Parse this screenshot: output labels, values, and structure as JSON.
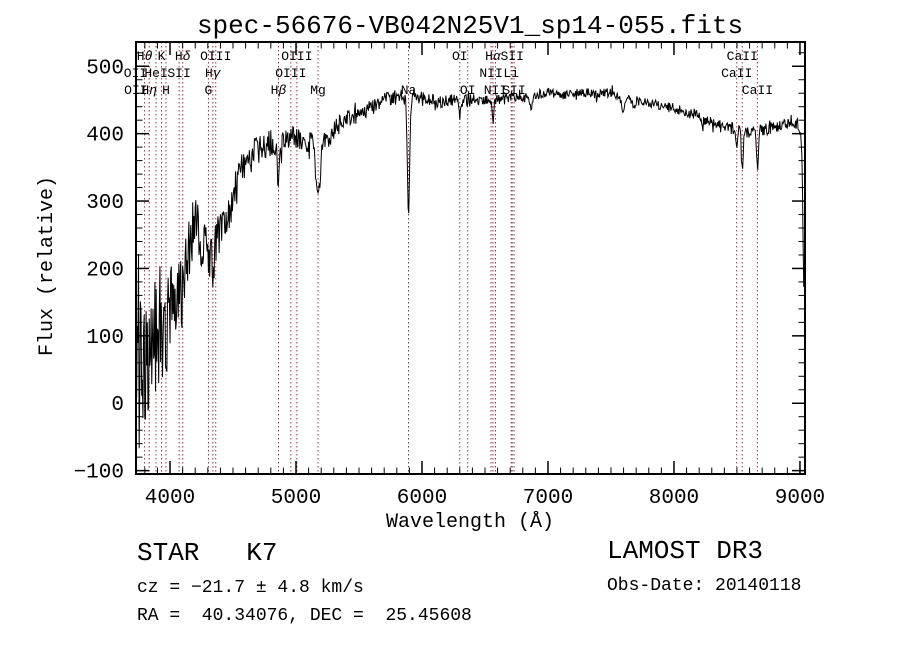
{
  "title": "spec-56676-VB042N25V1_sp14-055.fits",
  "chart_data": {
    "type": "line",
    "title": "spec-56676-VB042N25V1_sp14-055.fits",
    "xlabel": "Wavelength (Å)",
    "ylabel": "Flux (relative)",
    "xlim": [
      3730,
      9040
    ],
    "ylim": [
      -105,
      536
    ],
    "x_ticks": [
      4000,
      5000,
      6000,
      7000,
      8000,
      9000
    ],
    "y_ticks": [
      -100,
      0,
      100,
      200,
      300,
      400,
      500
    ],
    "x_minor_step": 100,
    "y_minor_step": 20,
    "grid": false,
    "legend": "none",
    "trace_color": "#000000",
    "line_marker_color": "#993333",
    "spectral_lines": [
      {
        "label": "Hθ",
        "wavelength": 3798,
        "row": 1
      },
      {
        "label": "K",
        "wavelength": 3933,
        "row": 1
      },
      {
        "label": "Hδ",
        "wavelength": 4101,
        "row": 1
      },
      {
        "label": "OIII",
        "wavelength": 4363,
        "row": 1
      },
      {
        "label": "OIII",
        "wavelength": 5007,
        "row": 1
      },
      {
        "label": "OI",
        "wavelength": 6300,
        "row": 1
      },
      {
        "label": "Hα",
        "wavelength": 6563,
        "row": 1
      },
      {
        "label": "SII",
        "wavelength": 6716,
        "row": 1
      },
      {
        "label": "CaII",
        "wavelength": 8542,
        "row": 1
      },
      {
        "label": "OII",
        "wavelength": 3726,
        "row": 2
      },
      {
        "label": "HeI",
        "wavelength": 3889,
        "row": 2
      },
      {
        "label": "SII",
        "wavelength": 4072,
        "row": 2
      },
      {
        "label": "Hγ",
        "wavelength": 4340,
        "row": 2
      },
      {
        "label": "OIII",
        "wavelength": 4959,
        "row": 2
      },
      {
        "label": "NII",
        "wavelength": 6548,
        "row": 2
      },
      {
        "label": "Li",
        "wavelength": 6708,
        "row": 2
      },
      {
        "label": "CaII",
        "wavelength": 8498,
        "row": 2
      },
      {
        "label": "OII",
        "wavelength": 3729,
        "row": 3
      },
      {
        "label": "Hη",
        "wavelength": 3835,
        "row": 3
      },
      {
        "label": "H",
        "wavelength": 3968,
        "row": 3
      },
      {
        "label": "G",
        "wavelength": 4305,
        "row": 3
      },
      {
        "label": "Hβ",
        "wavelength": 4861,
        "row": 3
      },
      {
        "label": "Mg",
        "wavelength": 5175,
        "row": 3
      },
      {
        "label": "Na",
        "wavelength": 5893,
        "row": 3
      },
      {
        "label": "OI",
        "wavelength": 6363,
        "row": 3
      },
      {
        "label": "NII",
        "wavelength": 6583,
        "row": 3
      },
      {
        "label": "SII",
        "wavelength": 6731,
        "row": 3
      },
      {
        "label": "CaII",
        "wavelength": 8662,
        "row": 3
      }
    ],
    "continuum": [
      [
        3730,
        30
      ],
      [
        3780,
        55
      ],
      [
        3830,
        85
      ],
      [
        3880,
        110
      ],
      [
        3930,
        125
      ],
      [
        3980,
        132
      ],
      [
        4030,
        155
      ],
      [
        4080,
        180
      ],
      [
        4130,
        215
      ],
      [
        4180,
        255
      ],
      [
        4215,
        268
      ],
      [
        4255,
        232
      ],
      [
        4310,
        218
      ],
      [
        4360,
        238
      ],
      [
        4420,
        252
      ],
      [
        4470,
        282
      ],
      [
        4520,
        318
      ],
      [
        4570,
        344
      ],
      [
        4620,
        362
      ],
      [
        4680,
        372
      ],
      [
        4740,
        378
      ],
      [
        4800,
        386
      ],
      [
        4860,
        382
      ],
      [
        4920,
        392
      ],
      [
        4980,
        396
      ],
      [
        5040,
        392
      ],
      [
        5100,
        388
      ],
      [
        5180,
        386
      ],
      [
        5250,
        393
      ],
      [
        5320,
        408
      ],
      [
        5400,
        420
      ],
      [
        5500,
        431
      ],
      [
        5600,
        441
      ],
      [
        5700,
        449
      ],
      [
        5820,
        455
      ],
      [
        5900,
        449
      ],
      [
        6000,
        452
      ],
      [
        6100,
        447
      ],
      [
        6200,
        451
      ],
      [
        6300,
        447
      ],
      [
        6400,
        450
      ],
      [
        6500,
        452
      ],
      [
        6600,
        451
      ],
      [
        6700,
        455
      ],
      [
        6800,
        452
      ],
      [
        6900,
        457
      ],
      [
        7000,
        462
      ],
      [
        7100,
        456
      ],
      [
        7200,
        461
      ],
      [
        7300,
        461
      ],
      [
        7400,
        459
      ],
      [
        7500,
        461
      ],
      [
        7600,
        452
      ],
      [
        7700,
        449
      ],
      [
        7800,
        446
      ],
      [
        7900,
        441
      ],
      [
        8000,
        438
      ],
      [
        8100,
        431
      ],
      [
        8200,
        426
      ],
      [
        8300,
        417
      ],
      [
        8400,
        410
      ],
      [
        8500,
        406
      ],
      [
        8600,
        401
      ],
      [
        8700,
        405
      ],
      [
        8800,
        409
      ],
      [
        8900,
        416
      ],
      [
        8950,
        421
      ],
      [
        9000,
        408
      ],
      [
        9040,
        400
      ]
    ],
    "noise_amplitude": [
      [
        3730,
        115
      ],
      [
        3800,
        105
      ],
      [
        3870,
        100
      ],
      [
        3950,
        88
      ],
      [
        4030,
        62
      ],
      [
        4120,
        48
      ],
      [
        4250,
        42
      ],
      [
        4400,
        34
      ],
      [
        4550,
        27
      ],
      [
        4700,
        22
      ],
      [
        4900,
        18
      ],
      [
        5100,
        16
      ],
      [
        5350,
        14
      ],
      [
        5600,
        13
      ],
      [
        5900,
        11
      ],
      [
        6200,
        10
      ],
      [
        6600,
        8
      ],
      [
        7000,
        7
      ],
      [
        7500,
        7
      ],
      [
        8000,
        7
      ],
      [
        8400,
        9
      ],
      [
        8700,
        9
      ],
      [
        9040,
        10
      ]
    ],
    "absorption_features": [
      [
        3933,
        55,
        10
      ],
      [
        3968,
        50,
        10
      ],
      [
        4101,
        35,
        9
      ],
      [
        4340,
        28,
        8
      ],
      [
        4861,
        55,
        8
      ],
      [
        5175,
        88,
        16
      ],
      [
        5893,
        162,
        9
      ],
      [
        6300,
        18,
        6
      ],
      [
        6563,
        36,
        7
      ],
      [
        6867,
        20,
        8
      ],
      [
        7594,
        28,
        9
      ],
      [
        7680,
        14,
        8
      ],
      [
        8227,
        14,
        6
      ],
      [
        8498,
        32,
        6
      ],
      [
        8542,
        60,
        7
      ],
      [
        8662,
        55,
        7
      ],
      [
        9032,
        225,
        9
      ]
    ],
    "sampling_step": 5,
    "noise_seed": 1234567,
    "spike_probability": 0.05,
    "spike_gain": 1.9
  },
  "footer": {
    "class_label": "STAR   K7",
    "cz_label": "cz = −21.7 ± 4.8 km/s",
    "radec_label": "RA =  40.34076, DEC =  25.45608",
    "survey": "LAMOST DR3",
    "obs_date": "Obs-Date: 20140118"
  }
}
